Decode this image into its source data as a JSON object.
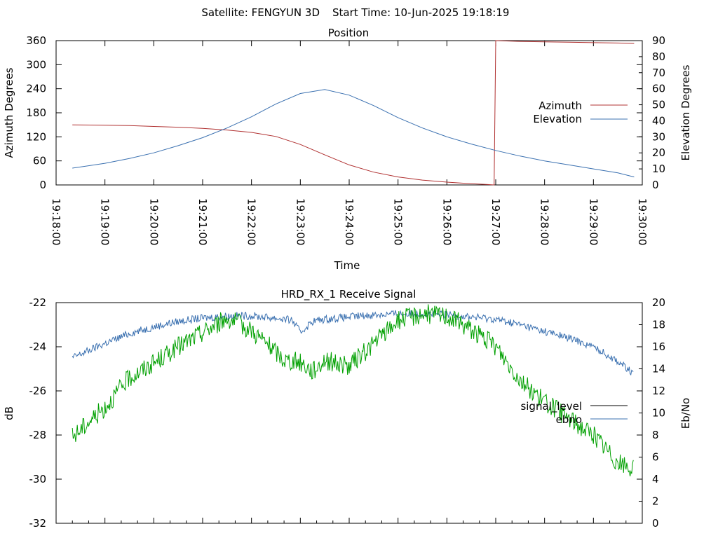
{
  "header": {
    "satellite": "Satellite: FENGYUN 3D",
    "start_time": "Start Time: 10-Jun-2025 19:18:19"
  },
  "chart_data": [
    {
      "type": "line",
      "title": "Position",
      "xlabel": "Time",
      "ylabel": "Azimuth Degrees",
      "y2label": "Elevation Degrees",
      "x_ticks": [
        "19:18:00",
        "19:19:00",
        "19:20:00",
        "19:21:00",
        "19:22:00",
        "19:23:00",
        "19:24:00",
        "19:25:00",
        "19:26:00",
        "19:27:00",
        "19:28:00",
        "19:29:00",
        "19:30:00"
      ],
      "xlim": [
        "19:18:00",
        "19:30:00"
      ],
      "ylim": [
        0,
        360
      ],
      "y_ticks": [
        0,
        60,
        120,
        180,
        240,
        300,
        360
      ],
      "y2lim": [
        0,
        90
      ],
      "y2_ticks": [
        0,
        10,
        20,
        30,
        40,
        50,
        60,
        70,
        80,
        90
      ],
      "legend_position": "right",
      "series": [
        {
          "name": "Azimuth",
          "axis": "y",
          "color": "#b03030",
          "x": [
            "19:18:20",
            "19:19:00",
            "19:19:30",
            "19:20:00",
            "19:20:30",
            "19:21:00",
            "19:21:30",
            "19:22:00",
            "19:22:30",
            "19:23:00",
            "19:23:30",
            "19:24:00",
            "19:24:30",
            "19:25:00",
            "19:25:30",
            "19:26:00",
            "19:26:30",
            "19:26:50",
            "19:26:58",
            "19:27:00",
            "19:27:30",
            "19:28:00",
            "19:28:30",
            "19:29:00",
            "19:29:30",
            "19:29:50"
          ],
          "values": [
            150,
            149,
            148,
            146,
            144,
            141,
            137,
            131,
            121,
            101,
            75,
            50,
            32,
            20,
            12,
            7,
            3,
            1,
            0,
            360,
            358,
            357,
            356,
            355,
            354,
            353
          ]
        },
        {
          "name": "Elevation",
          "axis": "y2",
          "color": "#3a70b0",
          "x": [
            "19:18:20",
            "19:19:00",
            "19:19:30",
            "19:20:00",
            "19:20:30",
            "19:21:00",
            "19:21:30",
            "19:22:00",
            "19:22:30",
            "19:23:00",
            "19:23:30",
            "19:24:00",
            "19:24:30",
            "19:25:00",
            "19:25:30",
            "19:26:00",
            "19:26:30",
            "19:27:00",
            "19:27:30",
            "19:28:00",
            "19:28:30",
            "19:29:00",
            "19:29:30",
            "19:29:50"
          ],
          "values": [
            10.5,
            13.5,
            16.5,
            20,
            24.5,
            29.5,
            35.5,
            42.5,
            50.5,
            57,
            59.5,
            56,
            49.5,
            42,
            35.5,
            30,
            25.5,
            21.5,
            18,
            15,
            12.5,
            10,
            7.5,
            5
          ]
        }
      ]
    },
    {
      "type": "line",
      "title": "HRD_RX_1 Receive Signal",
      "xlabel": "",
      "ylabel": "dB",
      "y2label": "Eb/No",
      "ylim": [
        -32,
        -22
      ],
      "y_ticks": [
        -32,
        -30,
        -28,
        -26,
        -24,
        -22
      ],
      "y2lim": [
        0,
        20
      ],
      "y2_ticks": [
        0,
        2,
        4,
        6,
        8,
        10,
        12,
        14,
        16,
        18,
        20
      ],
      "xlim": [
        "19:18:00",
        "19:30:00"
      ],
      "legend_position": "right",
      "series": [
        {
          "name": "signal_level",
          "axis": "y",
          "color": "#000000",
          "x": [],
          "values": []
        },
        {
          "name": "ebno",
          "axis": "y2",
          "color": "#3a70b0",
          "x": [
            "19:18:20",
            "19:19:00",
            "19:19:30",
            "19:20:00",
            "19:20:30",
            "19:21:00",
            "19:21:30",
            "19:22:00",
            "19:22:30",
            "19:22:50",
            "19:23:00",
            "19:23:15",
            "19:23:30",
            "19:24:00",
            "19:24:30",
            "19:25:00",
            "19:25:30",
            "19:26:00",
            "19:26:30",
            "19:27:00",
            "19:27:30",
            "19:28:00",
            "19:28:30",
            "19:29:00",
            "19:29:30",
            "19:29:50"
          ],
          "values": [
            15.0,
            16.3,
            17.2,
            17.8,
            18.3,
            18.6,
            18.8,
            18.8,
            18.6,
            18.4,
            17.3,
            18.3,
            18.5,
            18.7,
            18.9,
            19.0,
            19.0,
            18.9,
            18.7,
            18.5,
            18.0,
            17.4,
            16.8,
            16.0,
            14.7,
            13.5
          ]
        },
        {
          "name": "",
          "axis": "y2",
          "color": "#00a000",
          "x": [
            "19:18:20",
            "19:18:40",
            "19:19:00",
            "19:19:30",
            "19:20:00",
            "19:20:30",
            "19:21:00",
            "19:21:30",
            "19:22:00",
            "19:22:20",
            "19:22:40",
            "19:23:00",
            "19:23:15",
            "19:23:30",
            "19:24:00",
            "19:24:30",
            "19:25:00",
            "19:25:30",
            "19:26:00",
            "19:26:30",
            "19:27:00",
            "19:27:30",
            "19:28:00",
            "19:28:30",
            "19:29:00",
            "19:29:30",
            "19:29:50"
          ],
          "values": [
            7.8,
            9.2,
            10.5,
            13.2,
            14.5,
            16.0,
            17.3,
            18.6,
            17.5,
            16.2,
            14.8,
            14.6,
            13.8,
            14.8,
            14.2,
            16.3,
            18.4,
            19.0,
            18.8,
            17.6,
            16.0,
            13.0,
            11.0,
            9.5,
            8.0,
            5.5,
            4.8
          ]
        }
      ]
    }
  ]
}
